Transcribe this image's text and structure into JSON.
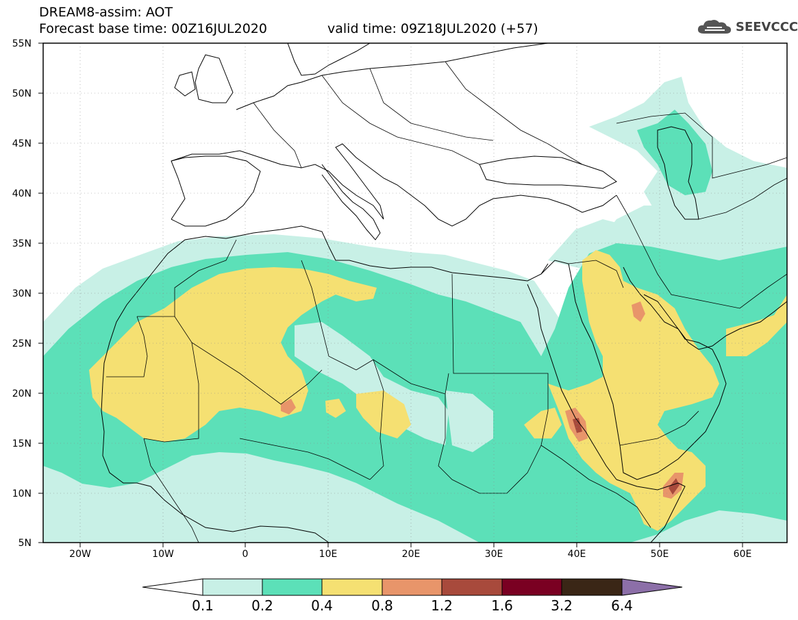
{
  "header": {
    "line1": "DREAM8-assim: AOT",
    "line2": "Forecast base time: 00Z16JUL2020",
    "valid": "valid time: 09Z18JUL2020 (+57)"
  },
  "logo": {
    "text": "SEEVCCC",
    "icon": "cloud-icon"
  },
  "map": {
    "lon_labels": [
      "20W",
      "10W",
      "0",
      "10E",
      "20E",
      "30E",
      "40E",
      "50E",
      "60E"
    ],
    "lat_labels": [
      "55N",
      "50N",
      "45N",
      "40N",
      "35N",
      "30N",
      "25N",
      "20N",
      "15N",
      "10N",
      "5N"
    ],
    "lon_range": [
      -25,
      65
    ],
    "lat_range": [
      5,
      55
    ]
  },
  "colorbar": {
    "labels": [
      "0.1",
      "0.2",
      "0.4",
      "0.8",
      "1.2",
      "1.6",
      "3.2",
      "6.4"
    ],
    "colors": [
      "#ffffff",
      "#c8f0e6",
      "#5ce0b8",
      "#f5e072",
      "#e8956a",
      "#a84a3c",
      "#7a0022",
      "#3a2616",
      "#8c6fa8"
    ]
  },
  "colors": {
    "aot_01_02": "#c8f0e6",
    "aot_02_04": "#5ce0b8",
    "aot_04_08": "#f5e072",
    "aot_08_12": "#e8956a",
    "aot_12_16": "#a84a3c"
  }
}
